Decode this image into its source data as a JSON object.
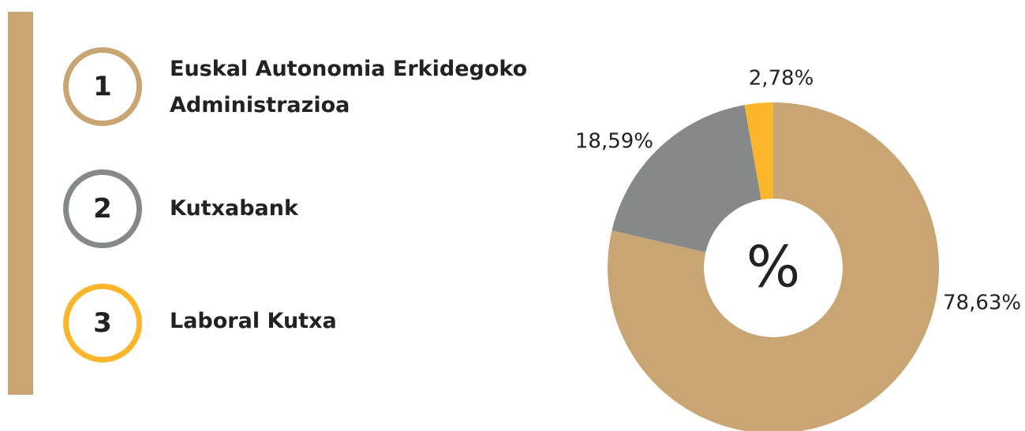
{
  "chart_data": {
    "type": "pie",
    "center_label": "%",
    "categories": [
      "Euskal Autonomia Erkidegoko Administrazioa",
      "Kutxabank",
      "Laboral Kutxa"
    ],
    "markers": [
      "1",
      "2",
      "3"
    ],
    "values": [
      78.63,
      18.59,
      2.78
    ],
    "value_labels": [
      "78,63%",
      "18,59%",
      "2,78%"
    ],
    "colors": [
      "#c8a572",
      "#858a89",
      "#fbb62b"
    ]
  }
}
